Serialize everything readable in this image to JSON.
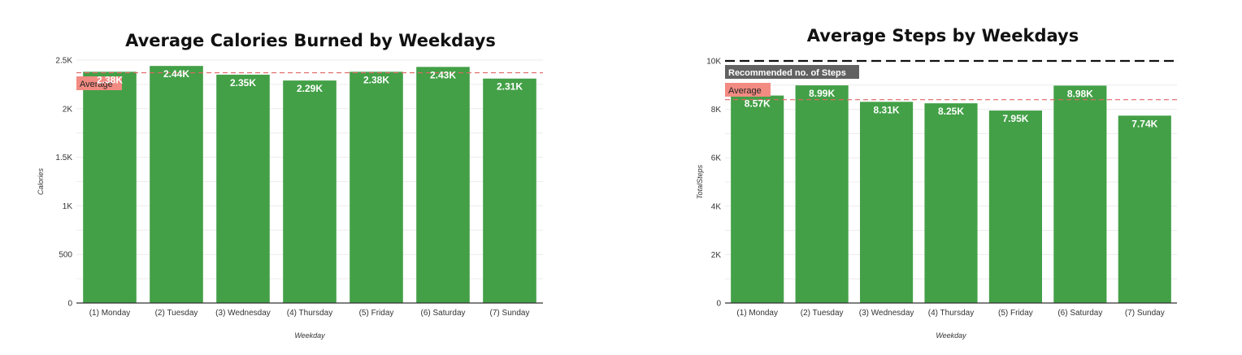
{
  "chart_data": [
    {
      "type": "bar",
      "title": "Average Calories Burned by Weekdays",
      "xlabel": "Weekday",
      "ylabel": "Calories",
      "categories": [
        "(1) Monday",
        "(2) Tuesday",
        "(3) Wednesday",
        "(4) Thursday",
        "(5) Friday",
        "(6) Saturday",
        "(7) Sunday"
      ],
      "values": [
        2380,
        2440,
        2350,
        2290,
        2380,
        2430,
        2310
      ],
      "value_labels": [
        "2.38K",
        "2.44K",
        "2.35K",
        "2.29K",
        "2.38K",
        "2.43K",
        "2.31K"
      ],
      "ylim": [
        0,
        2500
      ],
      "yticks": [
        0,
        500,
        1000,
        1500,
        2000,
        2500
      ],
      "ytick_labels": [
        "0",
        "500",
        "1K",
        "1.5K",
        "2K",
        "2.5K"
      ],
      "grid": true,
      "bar_color": "#43a047",
      "reference_lines": [
        {
          "label": "Average",
          "value": 2370,
          "style": "dashed",
          "color": "#e06666",
          "label_bg": "#f28b82",
          "label_color": "#222222"
        }
      ]
    },
    {
      "type": "bar",
      "title": "Average Steps by Weekdays",
      "xlabel": "Weekday",
      "ylabel": "TotalSteps",
      "categories": [
        "(1) Monday",
        "(2) Tuesday",
        "(3) Wednesday",
        "(4) Thursday",
        "(5) Friday",
        "(6) Saturday",
        "(7) Sunday"
      ],
      "values": [
        8570,
        8990,
        8310,
        8250,
        7950,
        8980,
        7740
      ],
      "value_labels": [
        "8.57K",
        "8.99K",
        "8.31K",
        "8.25K",
        "7.95K",
        "8.98K",
        "7.74K"
      ],
      "ylim": [
        0,
        10000
      ],
      "yticks": [
        0,
        2000,
        4000,
        6000,
        8000,
        10000
      ],
      "ytick_labels": [
        "0",
        "2K",
        "4K",
        "6K",
        "8K",
        "10K"
      ],
      "grid": true,
      "bar_color": "#43a047",
      "reference_lines": [
        {
          "label": "Recommended no. of Steps",
          "value": 10000,
          "style": "dashed",
          "color": "#111111",
          "label_bg": "#616161",
          "label_color": "#ffffff"
        },
        {
          "label": "Average",
          "value": 8400,
          "style": "dashed",
          "color": "#e06666",
          "label_bg": "#f28b82",
          "label_color": "#222222"
        }
      ]
    }
  ]
}
